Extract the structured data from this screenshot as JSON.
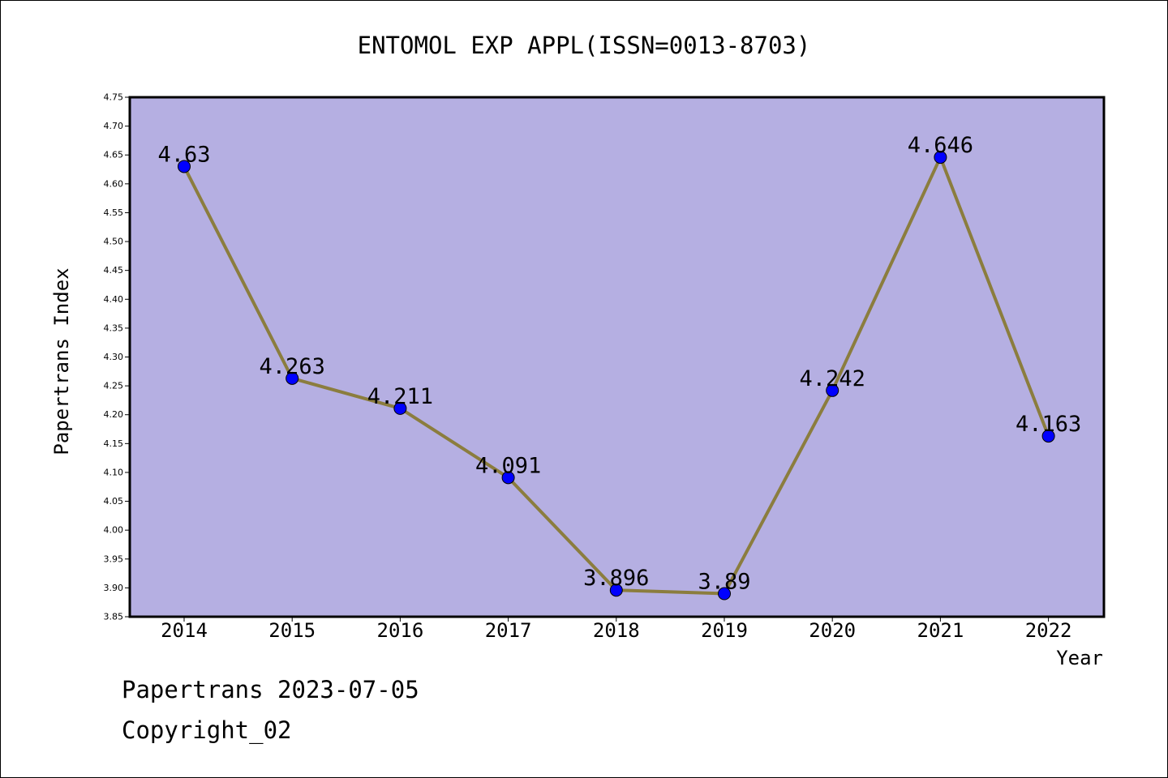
{
  "chart_data": {
    "type": "line",
    "title": "ENTOMOL EXP APPL(ISSN=0013-8703)",
    "xlabel": "Year",
    "ylabel": "Papertrans Index",
    "categories": [
      "2014",
      "2015",
      "2016",
      "2017",
      "2018",
      "2019",
      "2020",
      "2021",
      "2022"
    ],
    "series": [
      {
        "values": [
          4.63,
          4.263,
          4.211,
          4.091,
          3.896,
          3.89,
          4.242,
          4.646,
          4.163
        ],
        "labels": [
          "4.63",
          "4.263",
          "4.211",
          "4.091",
          "3.896",
          "3.89",
          "4.242",
          "4.646",
          "4.163"
        ]
      }
    ],
    "ylim": [
      3.85,
      4.75
    ],
    "yticks": [
      "3.85",
      "3.90",
      "3.95",
      "4.00",
      "4.05",
      "4.10",
      "4.15",
      "4.20",
      "4.25",
      "4.30",
      "4.35",
      "4.40",
      "4.45",
      "4.50",
      "4.55",
      "4.60",
      "4.65",
      "4.70",
      "4.75"
    ],
    "grid": false,
    "legend": "none",
    "colors": {
      "plot_background": "#b5afe2",
      "line": "#8b7d3e",
      "marker": "#0000ff"
    }
  },
  "footer": {
    "line1": "Papertrans 2023-07-05",
    "line2": "Copyright_02"
  }
}
